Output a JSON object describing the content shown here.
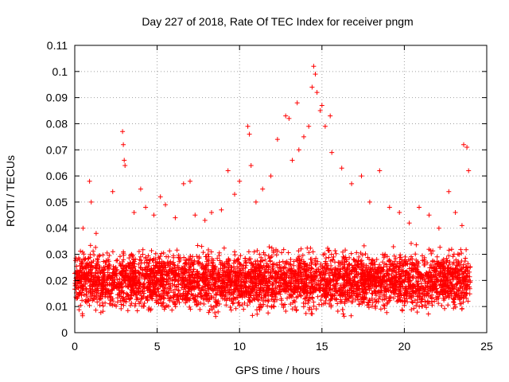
{
  "chart_data": {
    "type": "scatter",
    "title": "Day 227 of 2018, Rate Of TEC Index for receiver pngm",
    "xlabel": "GPS time / hours",
    "ylabel": "ROTI / TECUs",
    "xlim": [
      0,
      25
    ],
    "ylim": [
      0,
      0.11
    ],
    "x_ticks": [
      0,
      5,
      10,
      15,
      20,
      25
    ],
    "x_tick_labels": [
      "0",
      "5",
      "10",
      "15",
      "20",
      "25"
    ],
    "y_ticks": [
      0,
      0.01,
      0.02,
      0.03,
      0.04,
      0.05,
      0.06,
      0.07,
      0.08,
      0.09,
      0.1,
      0.11
    ],
    "y_tick_labels": [
      "0",
      "0.01",
      "0.02",
      "0.03",
      "0.04",
      "0.05",
      "0.06",
      "0.07",
      "0.08",
      "0.09",
      "0.1",
      "0.11"
    ],
    "grid": true,
    "marker": "+",
    "color": "#ff0000",
    "dense_band": {
      "note": "Thousands of points densely cover the whole day between roughly these ROTI values",
      "x_range": [
        0,
        24
      ],
      "y_range": [
        0.005,
        0.035
      ],
      "count": 4200
    },
    "series": [
      {
        "name": "ROTI",
        "x": [
          0.5,
          0.9,
          1.0,
          1.3,
          2.3,
          2.9,
          2.95,
          3.0,
          3.05,
          3.6,
          4.0,
          4.3,
          4.8,
          5.2,
          5.5,
          6.1,
          6.6,
          7.0,
          7.3,
          7.9,
          8.3,
          8.9,
          9.3,
          9.7,
          10.0,
          10.5,
          10.6,
          10.7,
          11.0,
          11.4,
          11.9,
          12.3,
          12.8,
          13.0,
          13.2,
          13.5,
          13.6,
          13.9,
          14.2,
          14.4,
          14.5,
          14.6,
          14.7,
          14.9,
          15.0,
          15.2,
          15.5,
          15.6,
          16.2,
          16.8,
          17.4,
          17.9,
          18.5,
          19.1,
          19.7,
          20.3,
          20.9,
          21.5,
          22.1,
          22.7,
          23.1,
          23.5,
          23.6,
          23.8,
          23.9
        ],
        "y": [
          0.04,
          0.058,
          0.05,
          0.038,
          0.054,
          0.077,
          0.072,
          0.066,
          0.064,
          0.046,
          0.055,
          0.048,
          0.045,
          0.052,
          0.049,
          0.044,
          0.057,
          0.058,
          0.045,
          0.043,
          0.046,
          0.047,
          0.062,
          0.053,
          0.058,
          0.079,
          0.076,
          0.064,
          0.05,
          0.055,
          0.06,
          0.074,
          0.083,
          0.082,
          0.066,
          0.088,
          0.07,
          0.075,
          0.079,
          0.094,
          0.102,
          0.099,
          0.092,
          0.085,
          0.087,
          0.079,
          0.083,
          0.069,
          0.063,
          0.057,
          0.06,
          0.05,
          0.062,
          0.048,
          0.046,
          0.042,
          0.048,
          0.045,
          0.04,
          0.054,
          0.046,
          0.041,
          0.072,
          0.071,
          0.062
        ]
      }
    ]
  }
}
